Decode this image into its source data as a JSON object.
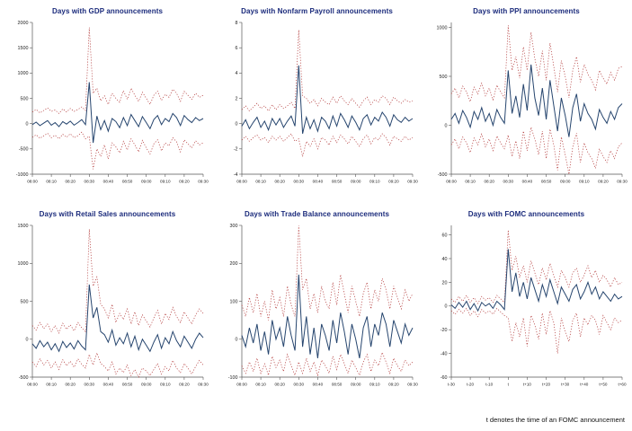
{
  "footnote": {
    "text": "t denotes the time of an FOMC announcement"
  },
  "style": {
    "mean_color": "#26456e",
    "band_color": "#b03434",
    "title_color": "#1a2a7b"
  },
  "chart_data": [
    {
      "type": "line",
      "title": "Days with GDP announcements",
      "xlabels": [
        "08:00",
        "08:10",
        "08:20",
        "08:30",
        "08:40",
        "08:50",
        "09:00",
        "09:10",
        "09:20",
        "09:30"
      ],
      "yticks": [
        2000,
        1500,
        1000,
        500,
        0,
        -500,
        -1000
      ],
      "ylim": [
        -1000,
        2000
      ],
      "legend": "off",
      "series": [
        {
          "name": "mean",
          "style": "solid",
          "color": "#26456e",
          "values": [
            -20,
            30,
            -40,
            10,
            60,
            -30,
            20,
            -60,
            40,
            -10,
            50,
            -30,
            20,
            80,
            -20,
            820,
            -380,
            150,
            -120,
            60,
            -150,
            100,
            40,
            -80,
            120,
            -40,
            180,
            60,
            -60,
            140,
            20,
            -100,
            80,
            160,
            -20,
            100,
            40,
            200,
            120,
            -40,
            160,
            80,
            20,
            120,
            60,
            100
          ]
        },
        {
          "name": "upper_band",
          "style": "dotted",
          "color": "#b03434",
          "values": [
            230,
            280,
            210,
            260,
            310,
            240,
            270,
            200,
            290,
            230,
            300,
            240,
            280,
            330,
            260,
            1900,
            600,
            700,
            450,
            550,
            380,
            600,
            500,
            420,
            650,
            480,
            700,
            560,
            440,
            620,
            500,
            380,
            560,
            640,
            460,
            580,
            520,
            680,
            600,
            440,
            640,
            560,
            480,
            600,
            520,
            560
          ]
        },
        {
          "name": "lower_band",
          "style": "dotted",
          "color": "#b03434",
          "values": [
            -270,
            -220,
            -290,
            -240,
            -190,
            -280,
            -230,
            -300,
            -210,
            -270,
            -200,
            -280,
            -240,
            -170,
            -300,
            -250,
            -900,
            -500,
            -650,
            -420,
            -700,
            -380,
            -460,
            -580,
            -350,
            -520,
            -300,
            -420,
            -560,
            -330,
            -480,
            -600,
            -400,
            -320,
            -540,
            -380,
            -440,
            -280,
            -360,
            -560,
            -320,
            -400,
            -480,
            -340,
            -420,
            -380
          ]
        }
      ]
    },
    {
      "type": "line",
      "title": "Days with Nonfarm Payroll announcements",
      "xlabels": [
        "08:00",
        "08:10",
        "08:20",
        "08:30",
        "08:40",
        "08:50",
        "09:00",
        "09:10",
        "09:20",
        "09:30"
      ],
      "yticks": [
        8,
        6,
        4,
        2,
        0,
        -2,
        -4
      ],
      "ylim": [
        -4,
        8
      ],
      "legend": "off",
      "series": [
        {
          "name": "mean",
          "style": "solid",
          "color": "#26456e",
          "values": [
            -0.2,
            0.3,
            -0.4,
            0.1,
            0.5,
            -0.3,
            0.2,
            -0.5,
            0.4,
            -0.1,
            0.4,
            -0.3,
            0.2,
            0.6,
            -0.2,
            4.6,
            -0.8,
            0.5,
            -0.4,
            0.3,
            -0.6,
            0.5,
            0.2,
            -0.4,
            0.6,
            -0.2,
            0.8,
            0.3,
            -0.3,
            0.6,
            0.1,
            -0.5,
            0.4,
            0.7,
            -0.1,
            0.5,
            0.2,
            0.9,
            0.5,
            -0.2,
            0.7,
            0.3,
            0.1,
            0.5,
            0.2,
            0.4
          ]
        },
        {
          "name": "upper_band",
          "style": "dotted",
          "color": "#b03434",
          "values": [
            1.1,
            1.4,
            1.0,
            1.3,
            1.6,
            1.2,
            1.4,
            1.0,
            1.5,
            1.1,
            1.5,
            1.2,
            1.4,
            1.7,
            1.2,
            7.4,
            2.2,
            2.0,
            1.6,
            1.9,
            1.4,
            2.0,
            1.7,
            1.5,
            2.1,
            1.6,
            2.2,
            1.8,
            1.5,
            2.0,
            1.6,
            1.3,
            1.8,
            2.1,
            1.5,
            1.9,
            1.7,
            2.2,
            2.0,
            1.5,
            2.1,
            1.8,
            1.6,
            1.9,
            1.7,
            1.8
          ]
        },
        {
          "name": "lower_band",
          "style": "dotted",
          "color": "#b03434",
          "values": [
            -1.3,
            -1.0,
            -1.4,
            -1.1,
            -0.9,
            -1.3,
            -1.1,
            -1.5,
            -1.0,
            -1.3,
            -1.0,
            -1.4,
            -1.1,
            -0.8,
            -1.4,
            -1.2,
            -2.6,
            -1.4,
            -1.8,
            -1.2,
            -2.0,
            -1.1,
            -1.3,
            -1.7,
            -1.0,
            -1.5,
            -0.9,
            -1.2,
            -1.6,
            -1.0,
            -1.4,
            -1.8,
            -1.2,
            -0.9,
            -1.6,
            -1.1,
            -1.3,
            -0.8,
            -1.1,
            -1.7,
            -1.0,
            -1.2,
            -1.4,
            -1.0,
            -1.3,
            -1.1
          ]
        }
      ]
    },
    {
      "type": "line",
      "title": "Days with PPI announcements",
      "xlabels": [
        "08:00",
        "08:10",
        "08:20",
        "08:30",
        "08:40",
        "08:50",
        "09:00",
        "09:10",
        "09:20",
        "09:30"
      ],
      "yticks": [
        1000,
        500,
        0,
        -500
      ],
      "ylim": [
        -500,
        1050
      ],
      "legend": "off",
      "series": [
        {
          "name": "mean",
          "style": "solid",
          "color": "#26456e",
          "values": [
            60,
            120,
            20,
            150,
            80,
            -20,
            140,
            60,
            180,
            40,
            120,
            0,
            160,
            80,
            20,
            560,
            120,
            300,
            80,
            420,
            150,
            620,
            280,
            100,
            380,
            60,
            460,
            200,
            -60,
            280,
            100,
            -120,
            180,
            320,
            40,
            220,
            120,
            60,
            -40,
            160,
            80,
            20,
            140,
            60,
            180,
            220
          ]
        },
        {
          "name": "upper_band",
          "style": "dotted",
          "color": "#b03434",
          "values": [
            320,
            380,
            280,
            400,
            340,
            240,
            390,
            320,
            430,
            300,
            380,
            260,
            410,
            340,
            280,
            1020,
            560,
            700,
            480,
            800,
            560,
            950,
            680,
            500,
            760,
            460,
            840,
            600,
            340,
            660,
            500,
            280,
            560,
            700,
            440,
            620,
            520,
            460,
            360,
            560,
            480,
            420,
            540,
            460,
            580,
            600
          ]
        },
        {
          "name": "lower_band",
          "style": "dotted",
          "color": "#b03434",
          "values": [
            -200,
            -140,
            -240,
            -120,
            -180,
            -280,
            -130,
            -200,
            -90,
            -220,
            -140,
            -260,
            -110,
            -180,
            -240,
            -100,
            -320,
            -160,
            -340,
            -60,
            -260,
            -20,
            -140,
            -300,
            -60,
            -340,
            -40,
            -200,
            -460,
            -120,
            -300,
            -500,
            -220,
            -80,
            -380,
            -180,
            -280,
            -340,
            -440,
            -240,
            -320,
            -380,
            -260,
            -340,
            -220,
            -180
          ]
        }
      ]
    },
    {
      "type": "line",
      "title": "Days with Retail Sales announcements",
      "xlabels": [
        "08:00",
        "08:10",
        "08:20",
        "08:30",
        "08:40",
        "08:50",
        "09:00",
        "09:10",
        "09:20",
        "09:30"
      ],
      "yticks": [
        1500,
        1000,
        500,
        0,
        -500
      ],
      "ylim": [
        -500,
        1500
      ],
      "legend": "off",
      "series": [
        {
          "name": "mean",
          "style": "solid",
          "color": "#26456e",
          "values": [
            -60,
            -120,
            -20,
            -100,
            -40,
            -140,
            -60,
            -160,
            -30,
            -110,
            -50,
            -130,
            -20,
            -90,
            -140,
            720,
            280,
            420,
            100,
            60,
            -40,
            120,
            -80,
            20,
            -60,
            80,
            -100,
            40,
            -140,
            0,
            -80,
            -160,
            -40,
            60,
            -120,
            20,
            -60,
            100,
            -20,
            -100,
            40,
            -40,
            -120,
            0,
            80,
            20
          ]
        },
        {
          "name": "upper_band",
          "style": "dotted",
          "color": "#b03434",
          "values": [
            180,
            120,
            220,
            140,
            200,
            100,
            180,
            80,
            210,
            130,
            190,
            110,
            220,
            150,
            100,
            1450,
            700,
            820,
            460,
            400,
            280,
            460,
            220,
            340,
            260,
            400,
            200,
            360,
            180,
            320,
            240,
            160,
            280,
            380,
            200,
            340,
            260,
            420,
            300,
            220,
            360,
            280,
            200,
            320,
            400,
            340
          ]
        },
        {
          "name": "lower_band",
          "style": "dotted",
          "color": "#b03434",
          "values": [
            -300,
            -360,
            -260,
            -340,
            -280,
            -380,
            -300,
            -400,
            -270,
            -350,
            -290,
            -370,
            -260,
            -330,
            -380,
            -200,
            -340,
            -180,
            -320,
            -360,
            -420,
            -300,
            -460,
            -380,
            -440,
            -340,
            -480,
            -400,
            -500,
            -380,
            -420,
            -480,
            -400,
            -320,
            -460,
            -360,
            -420,
            -280,
            -380,
            -440,
            -320,
            -380,
            -460,
            -360,
            -280,
            -340
          ]
        }
      ]
    },
    {
      "type": "line",
      "title": "Days with Trade Balance announcements",
      "xlabels": [
        "08:00",
        "08:10",
        "08:20",
        "08:30",
        "08:40",
        "08:50",
        "09:00",
        "09:10",
        "09:20",
        "09:30"
      ],
      "yticks": [
        300,
        200,
        100,
        0,
        -100
      ],
      "ylim": [
        -100,
        300
      ],
      "legend": "off",
      "series": [
        {
          "name": "mean",
          "style": "solid",
          "color": "#26456e",
          "values": [
            10,
            -20,
            30,
            -10,
            40,
            -30,
            20,
            -40,
            50,
            0,
            30,
            -20,
            60,
            10,
            -30,
            170,
            -20,
            60,
            -40,
            30,
            -50,
            40,
            10,
            -30,
            50,
            -10,
            70,
            20,
            -40,
            40,
            0,
            -50,
            30,
            60,
            -20,
            40,
            10,
            70,
            40,
            -20,
            50,
            20,
            -10,
            40,
            10,
            30
          ]
        },
        {
          "name": "upper_band",
          "style": "dotted",
          "color": "#b03434",
          "values": [
            90,
            60,
            110,
            70,
            120,
            60,
            100,
            50,
            130,
            80,
            110,
            60,
            140,
            90,
            60,
            300,
            130,
            160,
            80,
            120,
            70,
            140,
            100,
            80,
            150,
            90,
            170,
            120,
            70,
            140,
            100,
            60,
            120,
            150,
            80,
            130,
            100,
            160,
            130,
            80,
            140,
            110,
            80,
            130,
            100,
            120
          ]
        },
        {
          "name": "lower_band",
          "style": "dotted",
          "color": "#b03434",
          "values": [
            -70,
            -90,
            -60,
            -85,
            -50,
            -90,
            -65,
            -95,
            -45,
            -75,
            -55,
            -85,
            -40,
            -70,
            -95,
            -60,
            -90,
            -50,
            -85,
            -60,
            -95,
            -55,
            -70,
            -90,
            -45,
            -80,
            -40,
            -65,
            -90,
            -55,
            -75,
            -95,
            -60,
            -40,
            -85,
            -55,
            -70,
            -35,
            -60,
            -90,
            -50,
            -70,
            -85,
            -55,
            -70,
            -60
          ]
        }
      ]
    },
    {
      "type": "line",
      "title": "Days with FOMC announcements",
      "xlabels": [
        "t-30",
        "t-20",
        "t-10",
        "t",
        "t+10",
        "t+20",
        "t+30",
        "t+40",
        "t+50",
        "t+60"
      ],
      "yticks": [
        60,
        40,
        20,
        0,
        -20,
        -40,
        -60
      ],
      "ylim": [
        -60,
        68
      ],
      "legend": "off",
      "series": [
        {
          "name": "mean",
          "style": "solid",
          "color": "#26456e",
          "values": [
            1,
            -2,
            3,
            -1,
            4,
            -3,
            2,
            -4,
            3,
            0,
            2,
            -2,
            4,
            1,
            -3,
            48,
            12,
            28,
            8,
            20,
            6,
            24,
            14,
            4,
            18,
            8,
            22,
            12,
            2,
            16,
            10,
            4,
            14,
            18,
            6,
            12,
            20,
            10,
            16,
            6,
            12,
            8,
            4,
            10,
            6,
            8
          ]
        },
        {
          "name": "upper_band",
          "style": "dotted",
          "color": "#b03434",
          "values": [
            6,
            3,
            8,
            4,
            9,
            3,
            7,
            2,
            8,
            5,
            7,
            3,
            9,
            6,
            3,
            64,
            30,
            42,
            24,
            34,
            20,
            38,
            28,
            18,
            32,
            22,
            36,
            26,
            16,
            30,
            24,
            16,
            28,
            32,
            20,
            26,
            34,
            24,
            30,
            20,
            26,
            22,
            16,
            24,
            18,
            20
          ]
        },
        {
          "name": "lower_band",
          "style": "dotted",
          "color": "#b03434",
          "values": [
            -4,
            -7,
            -3,
            -6,
            -2,
            -8,
            -4,
            -9,
            -3,
            -6,
            -4,
            -7,
            -2,
            -5,
            -8,
            -10,
            -30,
            -14,
            -26,
            -10,
            -34,
            -8,
            -16,
            -28,
            -6,
            -24,
            -4,
            -14,
            -40,
            -10,
            -22,
            -30,
            -12,
            -6,
            -26,
            -10,
            -16,
            -8,
            -12,
            -24,
            -8,
            -14,
            -20,
            -10,
            -14,
            -12
          ]
        }
      ]
    }
  ]
}
